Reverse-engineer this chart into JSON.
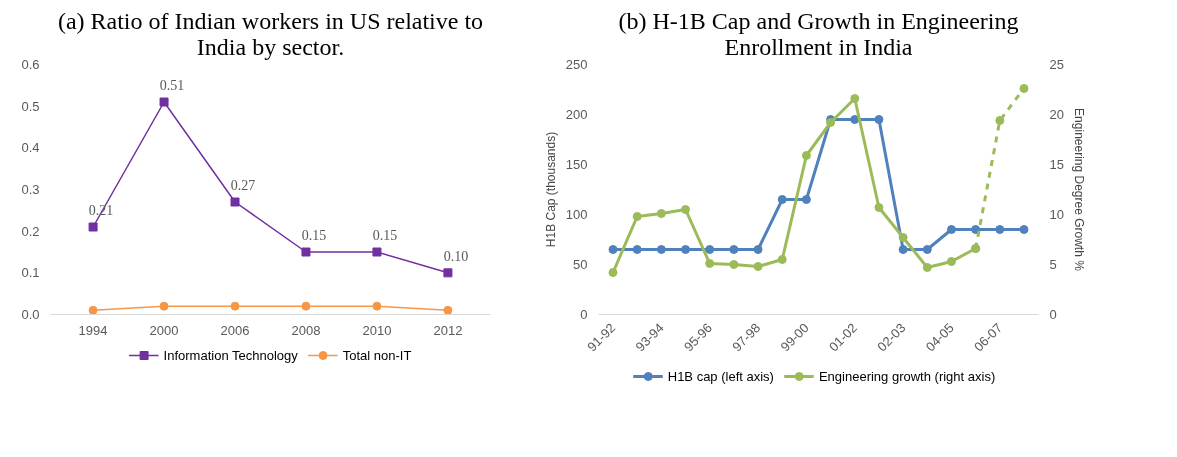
{
  "chart_data": [
    {
      "type": "line",
      "title": "(a) Ratio of Indian workers in US relative to India by sector.",
      "categories": [
        "1994",
        "2000",
        "2006",
        "2008",
        "2010",
        "2012"
      ],
      "ylim": [
        0,
        0.6
      ],
      "yticks": [
        {
          "value": 0,
          "label": "0.0"
        },
        0.1,
        0.2,
        0.3,
        0.4,
        0.5,
        0.6
      ],
      "grid": false,
      "legend": "bottom",
      "series": [
        {
          "name": "Information Technology",
          "color": "#7030a0",
          "marker": "square",
          "values": [
            0.21,
            0.51,
            0.27,
            0.15,
            0.15,
            0.1
          ],
          "value_labels": [
            "0.21",
            "0.51",
            "0.27",
            "0.15",
            "0.15",
            "0.10"
          ]
        },
        {
          "name": "Total non-IT",
          "color": "#f79646",
          "marker": "circle",
          "values": [
            0.01,
            0.02,
            0.02,
            0.02,
            0.02,
            0.01
          ]
        }
      ]
    },
    {
      "type": "line",
      "title": "(b) H-1B Cap and Growth in Engineering Enrollment in India",
      "categories": [
        "91-92",
        null,
        "93-94",
        null,
        "95-96",
        null,
        "97-98",
        null,
        "99-00",
        null,
        "01-02",
        null,
        "02-03",
        null,
        "04-05",
        null,
        "06-07",
        null
      ],
      "ylabel": "H1B Cap (thousands)",
      "y2label": "Engineering Degree Growth %",
      "ylim": [
        0,
        250
      ],
      "yticks": [
        0,
        50,
        100,
        150,
        200,
        250
      ],
      "y2lim": [
        0,
        25
      ],
      "y2ticks": [
        0,
        5,
        10,
        15,
        20,
        25
      ],
      "grid": false,
      "legend": "bottom",
      "series": [
        {
          "name": "H1B cap (left axis)",
          "color": "#4f81bd",
          "marker": "circle",
          "values": [
            65,
            65,
            65,
            65,
            65,
            65,
            65,
            115,
            115,
            195,
            195,
            195,
            65,
            65,
            85,
            85,
            85,
            85
          ]
        },
        {
          "name": "Engineering growth (right axis)",
          "color": "#9bbb59",
          "marker": "circle",
          "axis": "y2",
          "values": [
            4.2,
            9.8,
            10.1,
            10.5,
            5.1,
            5.0,
            4.8,
            5.5,
            15.9,
            19.2,
            21.6,
            10.7,
            7.7,
            4.7,
            5.3,
            6.6,
            null,
            null
          ]
        },
        {
          "color": "#9bbb59",
          "marker": "circle",
          "axis": "y2",
          "line_style": "dashed",
          "values": [
            null,
            null,
            null,
            null,
            null,
            null,
            null,
            null,
            null,
            null,
            null,
            null,
            null,
            null,
            null,
            6.6,
            19.4,
            22.6
          ]
        }
      ]
    }
  ]
}
